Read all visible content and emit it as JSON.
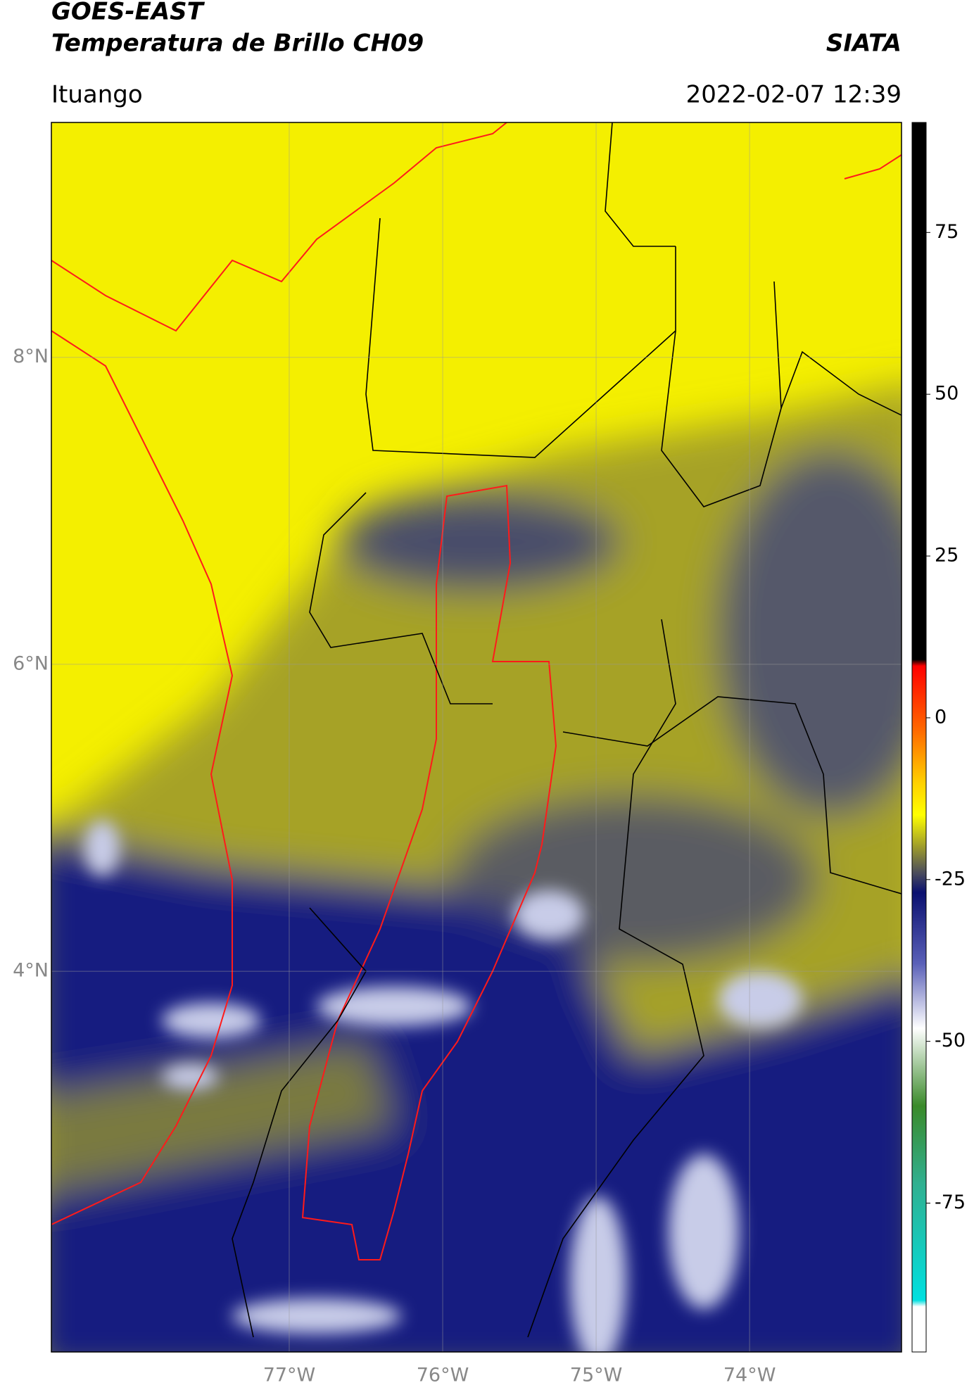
{
  "header": {
    "title": "GOES-EAST",
    "subtitle": "Temperatura de Brillo CH09",
    "source": "SIATA",
    "location": "Ituango",
    "datetime": "2022-02-07 12:39"
  },
  "map": {
    "xlim": [
      -78.55,
      -73.01
    ],
    "ylim": [
      1.52,
      9.53
    ],
    "xticks": [
      {
        "value": -77,
        "label": "77°W"
      },
      {
        "value": -76,
        "label": "76°W"
      },
      {
        "value": -75,
        "label": "75°W"
      },
      {
        "value": -74,
        "label": "74°W"
      }
    ],
    "yticks": [
      {
        "value": 8,
        "label": "8°N"
      },
      {
        "value": 6,
        "label": "6°N"
      },
      {
        "value": 4,
        "label": "4°N"
      }
    ],
    "grid": true
  },
  "colorbar": {
    "clim": [
      -98,
      92
    ],
    "ticks": [
      75,
      50,
      25,
      0,
      -25,
      -50,
      -75
    ],
    "stops": [
      {
        "value": 92,
        "color": "#000000"
      },
      {
        "value": 9,
        "color": "#000000"
      },
      {
        "value": 8,
        "color": "#ff0000"
      },
      {
        "value": -2,
        "color": "#ff6a00"
      },
      {
        "value": -10,
        "color": "#ffd000"
      },
      {
        "value": -15,
        "color": "#ffff00"
      },
      {
        "value": -20,
        "color": "#9c9a2c"
      },
      {
        "value": -24,
        "color": "#4a4c5c"
      },
      {
        "value": -27,
        "color": "#0a1070"
      },
      {
        "value": -38,
        "color": "#5a60b8"
      },
      {
        "value": -48,
        "color": "#ffffff"
      },
      {
        "value": -60,
        "color": "#3a8a2a"
      },
      {
        "value": -72,
        "color": "#30b090"
      },
      {
        "value": -90,
        "color": "#00e0e0"
      },
      {
        "value": -91,
        "color": "#ffffff"
      },
      {
        "value": -98,
        "color": "#ffffff"
      }
    ]
  }
}
